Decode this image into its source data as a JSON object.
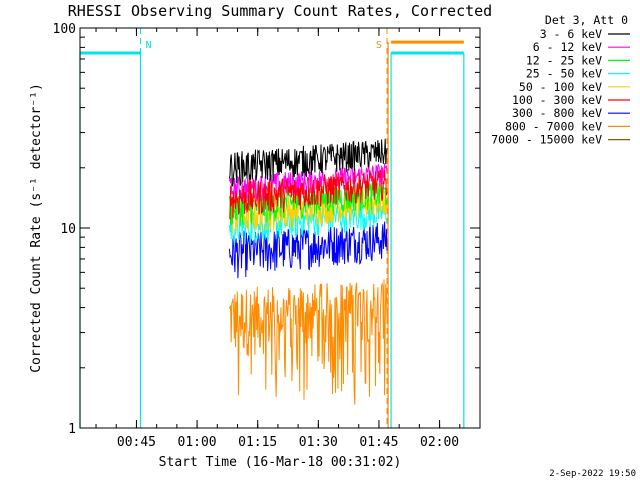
{
  "chart_data": {
    "type": "line",
    "title": "RHESSI Observing Summary Count Rates, Corrected",
    "xlabel": "Start Time (16-Mar-18 00:31:02)",
    "ylabel": "Corrected Count Rate (s⁻¹ detector⁻¹)",
    "y_scale": "log",
    "ylim": [
      1,
      100
    ],
    "y_ticks": [
      "1",
      "10",
      "100"
    ],
    "xlim": [
      "00:31:02",
      "02:10:00"
    ],
    "x_ticks": [
      "00:45",
      "01:00",
      "01:15",
      "01:30",
      "01:45",
      "02:00"
    ],
    "legend_header": "Det 3, Att 0",
    "legend_position": "right",
    "series": [
      {
        "name": "3 - 6 keV",
        "color": "#000000",
        "data_start": "01:08",
        "data_end": "01:47",
        "level_low": 16,
        "level_high": 24
      },
      {
        "name": "6 - 12 keV",
        "color": "#ff00ff",
        "data_start": "01:08",
        "data_end": "01:47",
        "level_low": 13,
        "level_high": 18
      },
      {
        "name": "12 - 25 keV",
        "color": "#00ff00",
        "data_start": "01:08",
        "data_end": "01:47",
        "level_low": 10,
        "level_high": 15
      },
      {
        "name": "25 - 50 keV",
        "color": "#00ffff",
        "data_start": "01:08",
        "data_end": "01:47",
        "level_low": 8,
        "level_high": 12
      },
      {
        "name": "50 - 100 keV",
        "color": "#ffd000",
        "data_start": "01:08",
        "data_end": "01:47",
        "level_low": 9,
        "level_high": 14
      },
      {
        "name": "100 - 300 keV",
        "color": "#ff0000",
        "data_start": "01:08",
        "data_end": "01:47",
        "level_low": 11,
        "level_high": 17
      },
      {
        "name": "300 - 800 keV",
        "color": "#0000ff",
        "data_start": "01:08",
        "data_end": "01:47",
        "level_low": 5.5,
        "level_high": 9.5
      },
      {
        "name": "800 - 7000 keV",
        "color": "#ff8c00",
        "data_start": "01:08",
        "data_end": "01:47",
        "level_low": 2.2,
        "level_high": 5
      },
      {
        "name": "7000 - 15000 keV",
        "color": "#8b5a00"
      }
    ],
    "annotations": [
      {
        "label": "N",
        "time": "00:46",
        "color": "#00e5e5"
      },
      {
        "label": "S",
        "time": "01:47",
        "color": "#ff8c00"
      }
    ],
    "night_intervals": [
      {
        "start": "00:31:02",
        "end": "00:46",
        "level": 75
      },
      {
        "start": "01:48",
        "end": "02:06",
        "level": 75
      }
    ],
    "saa_interval": {
      "start": "01:48",
      "end": "02:06",
      "level": 85
    },
    "grid": false
  },
  "timestamp": "2-Sep-2022 19:50"
}
